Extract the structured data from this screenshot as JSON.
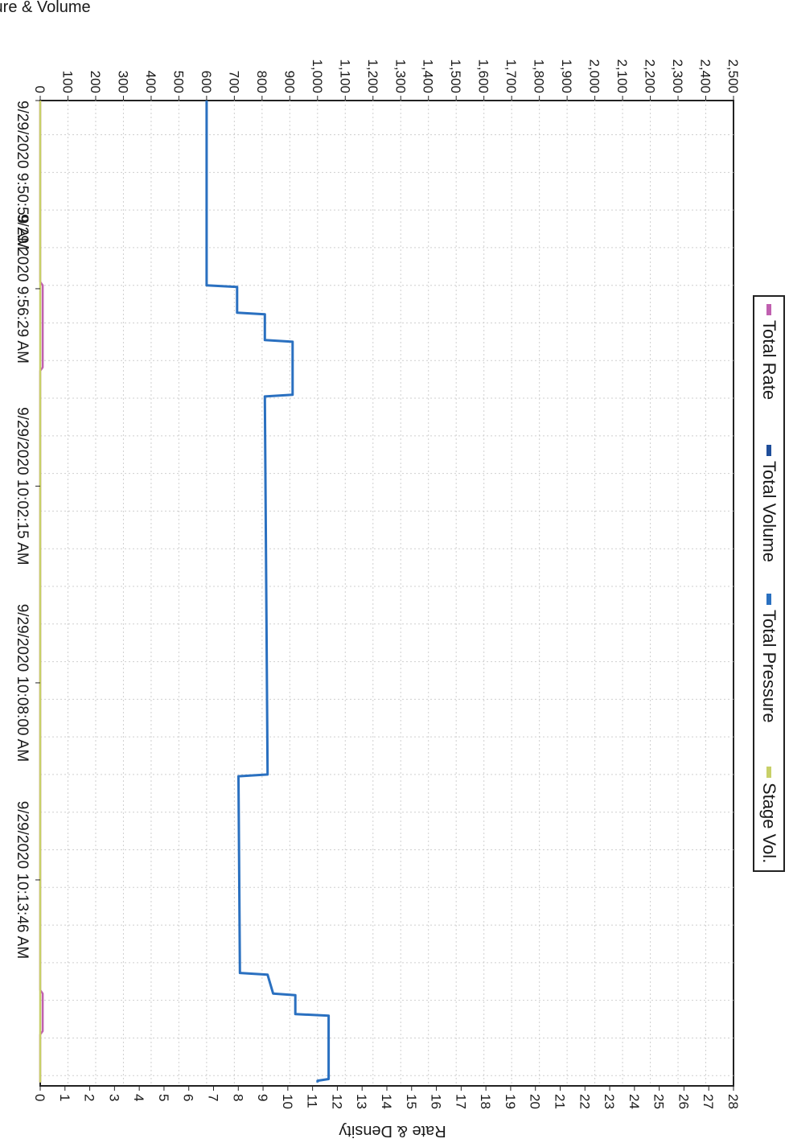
{
  "chart_data": {
    "type": "line",
    "orientation": "rotated-90-clockwise",
    "title": "Pressure & Volume",
    "left_axis": {
      "label": "Pressure & Volume",
      "range": [
        0,
        2500
      ],
      "ticks": [
        "0",
        "100",
        "200",
        "300",
        "400",
        "500",
        "600",
        "700",
        "800",
        "900",
        "1,000",
        "1,100",
        "1,200",
        "1,300",
        "1,400",
        "1,500",
        "1,600",
        "1,700",
        "1,800",
        "1,900",
        "2,000",
        "2,100",
        "2,200",
        "2,300",
        "2,400",
        "2,500"
      ]
    },
    "right_axis": {
      "label": "Rate & Density",
      "range": [
        0,
        28
      ],
      "ticks": [
        "0",
        "1",
        "2",
        "3",
        "4",
        "5",
        "6",
        "7",
        "8",
        "9",
        "10",
        "11",
        "12",
        "13",
        "14",
        "15",
        "16",
        "17",
        "18",
        "19",
        "20",
        "21",
        "22",
        "23",
        "24",
        "25",
        "26",
        "27",
        "28"
      ]
    },
    "time_axis": {
      "range_minutes": [
        0,
        28.8
      ],
      "tick_minutes": [
        0,
        5.5,
        11.27,
        17.02,
        22.78
      ],
      "ticks": [
        "9/29/2020 9:50:59 AM",
        "9/29/2020 9:56:29 AM",
        "9/29/2020 10:02:15 AM",
        "9/29/2020 10:08:00 AM",
        "9/29/2020 10:13:46 AM"
      ]
    },
    "legend": {
      "placement": "top-right",
      "items": [
        {
          "label": "Total Rate",
          "color": "#c060b0"
        },
        {
          "label": "Total Volume",
          "color": "#1f4e9a"
        },
        {
          "label": "Total Pressure",
          "color": "#2a70c0"
        },
        {
          "label": "Stage Vol.",
          "color": "#c8d068"
        }
      ]
    },
    "series": [
      {
        "name": "Total Pressure",
        "color": "#2a70c0",
        "axis": "left",
        "points": [
          [
            0,
            600
          ],
          [
            5.4,
            600
          ],
          [
            5.45,
            710
          ],
          [
            6.2,
            710
          ],
          [
            6.25,
            810
          ],
          [
            7.0,
            810
          ],
          [
            7.05,
            910
          ],
          [
            8.6,
            910
          ],
          [
            8.65,
            810
          ],
          [
            19.7,
            820
          ],
          [
            19.75,
            715
          ],
          [
            25.5,
            720
          ],
          [
            25.55,
            820
          ],
          [
            26.1,
            840
          ],
          [
            26.15,
            920
          ],
          [
            26.7,
            920
          ],
          [
            26.75,
            1040
          ],
          [
            28.6,
            1040
          ],
          [
            28.65,
            1000
          ],
          [
            28.7,
            1000
          ]
        ]
      },
      {
        "name": "Total Rate",
        "color": "#c060b0",
        "axis": "right",
        "points": [
          [
            0,
            0
          ],
          [
            5.3,
            0
          ],
          [
            5.4,
            0.1
          ],
          [
            7.8,
            0.1
          ],
          [
            7.9,
            0
          ],
          [
            26.0,
            0
          ],
          [
            26.1,
            0.1
          ],
          [
            27.2,
            0.1
          ],
          [
            27.3,
            0
          ],
          [
            28.7,
            0
          ]
        ]
      },
      {
        "name": "Stage Vol.",
        "color": "#c8d068",
        "axis": "right",
        "points": [
          [
            0,
            0
          ],
          [
            28.7,
            0
          ]
        ]
      }
    ]
  }
}
